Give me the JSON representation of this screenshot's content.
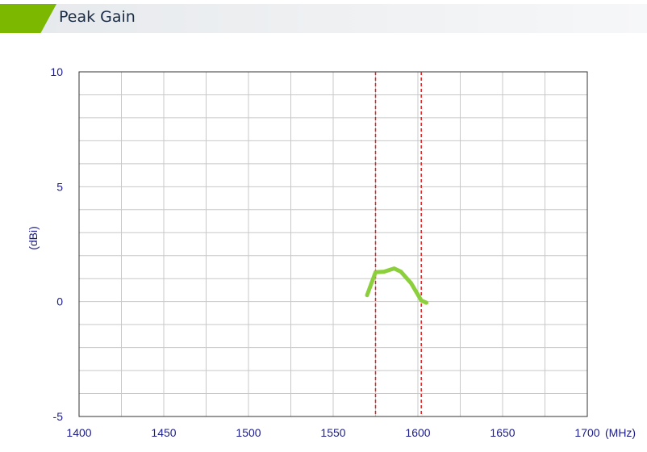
{
  "header": {
    "title": "Peak Gain",
    "accent_color": "#7cb800"
  },
  "chart_data": {
    "type": "line",
    "title": "Peak Gain",
    "xlabel": "(MHz)",
    "ylabel": "(dBi)",
    "xlim": [
      1400,
      1700
    ],
    "ylim": [
      -5,
      10
    ],
    "x_ticks": [
      1400,
      1450,
      1500,
      1550,
      1600,
      1650,
      1700
    ],
    "y_ticks": [
      -5,
      0,
      5,
      10
    ],
    "x_grid_step": 25,
    "y_grid_step": 1,
    "grid": true,
    "series": [
      {
        "color": "#8ccf3c",
        "x": [
          1570,
          1575,
          1580,
          1586,
          1590,
          1596,
          1602,
          1605
        ],
        "y": [
          0.28,
          1.28,
          1.3,
          1.44,
          1.3,
          0.8,
          0.05,
          -0.05
        ]
      }
    ],
    "markers": [
      {
        "type": "vertical-dashed",
        "x": 1575,
        "color": "#e02020"
      },
      {
        "type": "vertical-dashed",
        "x": 1602,
        "color": "#e02020"
      }
    ]
  }
}
